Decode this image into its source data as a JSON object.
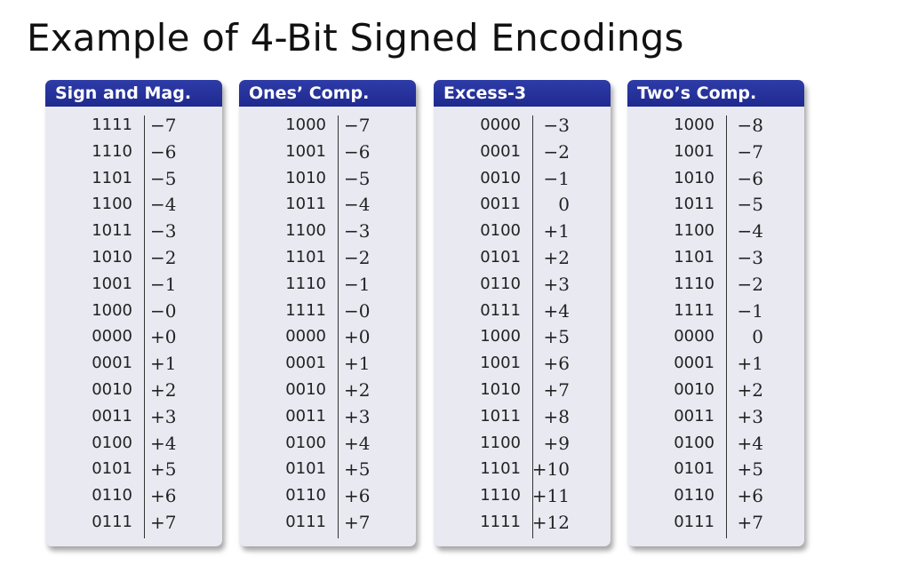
{
  "title": "Example of 4-Bit Signed Encodings",
  "tables": [
    {
      "header": "Sign and Mag.",
      "rows": [
        {
          "code": "1111",
          "value": "−7"
        },
        {
          "code": "1110",
          "value": "−6"
        },
        {
          "code": "1101",
          "value": "−5"
        },
        {
          "code": "1100",
          "value": "−4"
        },
        {
          "code": "1011",
          "value": "−3"
        },
        {
          "code": "1010",
          "value": "−2"
        },
        {
          "code": "1001",
          "value": "−1"
        },
        {
          "code": "1000",
          "value": "−0"
        },
        {
          "code": "0000",
          "value": "+0"
        },
        {
          "code": "0001",
          "value": "+1"
        },
        {
          "code": "0010",
          "value": "+2"
        },
        {
          "code": "0011",
          "value": "+3"
        },
        {
          "code": "0100",
          "value": "+4"
        },
        {
          "code": "0101",
          "value": "+5"
        },
        {
          "code": "0110",
          "value": "+6"
        },
        {
          "code": "0111",
          "value": "+7"
        }
      ]
    },
    {
      "header": "Ones’ Comp.",
      "rows": [
        {
          "code": "1000",
          "value": "−7"
        },
        {
          "code": "1001",
          "value": "−6"
        },
        {
          "code": "1010",
          "value": "−5"
        },
        {
          "code": "1011",
          "value": "−4"
        },
        {
          "code": "1100",
          "value": "−3"
        },
        {
          "code": "1101",
          "value": "−2"
        },
        {
          "code": "1110",
          "value": "−1"
        },
        {
          "code": "1111",
          "value": "−0"
        },
        {
          "code": "0000",
          "value": "+0"
        },
        {
          "code": "0001",
          "value": "+1"
        },
        {
          "code": "0010",
          "value": "+2"
        },
        {
          "code": "0011",
          "value": "+3"
        },
        {
          "code": "0100",
          "value": "+4"
        },
        {
          "code": "0101",
          "value": "+5"
        },
        {
          "code": "0110",
          "value": "+6"
        },
        {
          "code": "0111",
          "value": "+7"
        }
      ]
    },
    {
      "header": "Excess-3",
      "rows": [
        {
          "code": "0000",
          "value": "−3"
        },
        {
          "code": "0001",
          "value": "−2"
        },
        {
          "code": "0010",
          "value": "−1"
        },
        {
          "code": "0011",
          "value": "0"
        },
        {
          "code": "0100",
          "value": "+1"
        },
        {
          "code": "0101",
          "value": "+2"
        },
        {
          "code": "0110",
          "value": "+3"
        },
        {
          "code": "0111",
          "value": "+4"
        },
        {
          "code": "1000",
          "value": "+5"
        },
        {
          "code": "1001",
          "value": "+6"
        },
        {
          "code": "1010",
          "value": "+7"
        },
        {
          "code": "1011",
          "value": "+8"
        },
        {
          "code": "1100",
          "value": "+9"
        },
        {
          "code": "1101",
          "value": "+10"
        },
        {
          "code": "1110",
          "value": "+11"
        },
        {
          "code": "1111",
          "value": "+12"
        }
      ]
    },
    {
      "header": "Two’s Comp.",
      "rows": [
        {
          "code": "1000",
          "value": "−8"
        },
        {
          "code": "1001",
          "value": "−7"
        },
        {
          "code": "1010",
          "value": "−6"
        },
        {
          "code": "1011",
          "value": "−5"
        },
        {
          "code": "1100",
          "value": "−4"
        },
        {
          "code": "1101",
          "value": "−3"
        },
        {
          "code": "1110",
          "value": "−2"
        },
        {
          "code": "1111",
          "value": "−1"
        },
        {
          "code": "0000",
          "value": "0"
        },
        {
          "code": "0001",
          "value": "+1"
        },
        {
          "code": "0010",
          "value": "+2"
        },
        {
          "code": "0011",
          "value": "+3"
        },
        {
          "code": "0100",
          "value": "+4"
        },
        {
          "code": "0101",
          "value": "+5"
        },
        {
          "code": "0110",
          "value": "+6"
        },
        {
          "code": "0111",
          "value": "+7"
        }
      ]
    }
  ]
}
